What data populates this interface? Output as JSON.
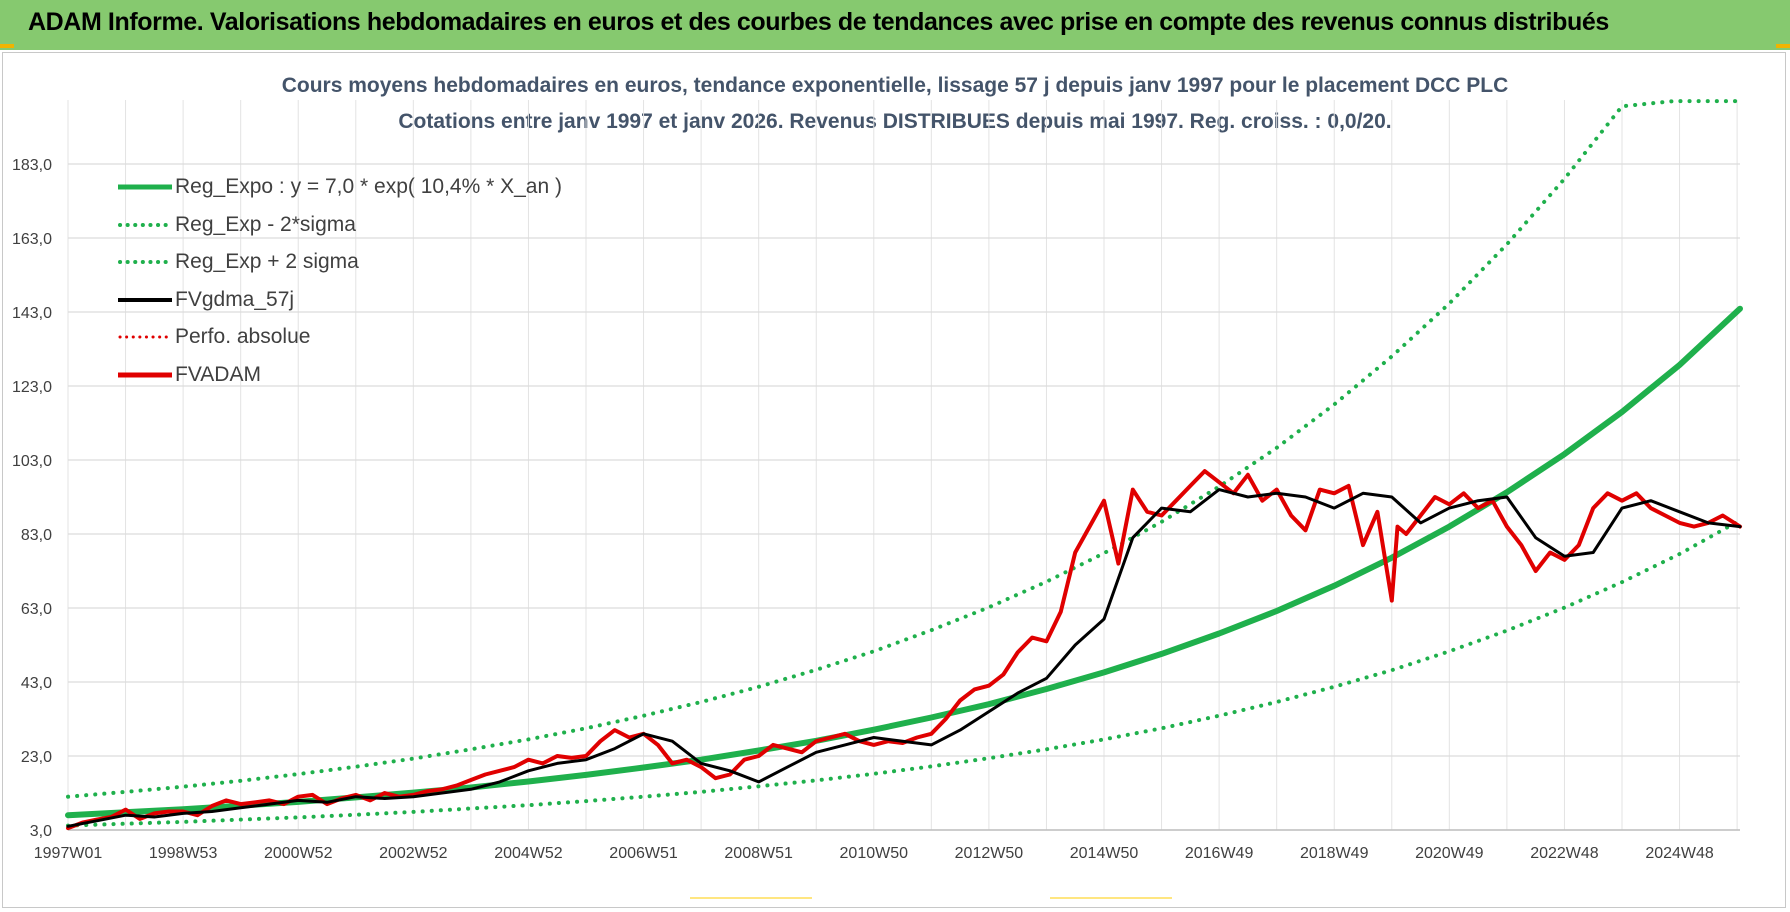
{
  "header": {
    "title": "ADAM Informe. Valorisations hebdomadaires en euros et des courbes de tendances avec prise en compte des revenus connus distribués"
  },
  "chart_data": {
    "type": "line",
    "title": "Cours moyens hebdomadaires en euros, tendance exponentielle, lissage 57 j depuis janv 1997 pour le placement DCC PLC",
    "subtitle": "Cotations entre janv 1997 et janv 2026. Revenus DISTRIBUES depuis mai 1997. Reg. croiss. : 0,0/20.",
    "xlabel": "",
    "ylabel": "",
    "x_range": [
      1997.0,
      2026.05
    ],
    "ylim": [
      3.0,
      200.0
    ],
    "grid": true,
    "legend_position": "top-left",
    "y_ticks": [
      "3,0",
      "23,0",
      "43,0",
      "63,0",
      "83,0",
      "103,0",
      "123,0",
      "143,0",
      "163,0",
      "183,0"
    ],
    "y_tick_values": [
      3,
      23,
      43,
      63,
      83,
      103,
      123,
      143,
      163,
      183
    ],
    "x_ticks": [
      "1997W01",
      "1998W53",
      "2000W52",
      "2002W52",
      "2004W52",
      "2006W51",
      "2008W51",
      "2010W50",
      "2012W50",
      "2014W50",
      "2016W49",
      "2018W49",
      "2020W49",
      "2022W48",
      "2024W48"
    ],
    "x_tick_values": [
      1997.0,
      1999.0,
      2001.0,
      2003.0,
      2005.0,
      2007.0,
      2009.0,
      2011.0,
      2013.0,
      2015.0,
      2017.0,
      2019.0,
      2021.0,
      2023.0,
      2025.0
    ],
    "series": [
      {
        "name": "Reg_Expo : y = 7,0 * exp( 10,4% *  X_an )",
        "style": "solid",
        "color": "#1fb04c",
        "x": [
          1997.0,
          1998.0,
          1999.0,
          2000.0,
          2001.0,
          2002.0,
          2003.0,
          2004.0,
          2005.0,
          2006.0,
          2007.0,
          2008.0,
          2009.0,
          2010.0,
          2011.0,
          2012.0,
          2013.0,
          2014.0,
          2015.0,
          2016.0,
          2017.0,
          2018.0,
          2019.0,
          2020.0,
          2021.0,
          2022.0,
          2023.0,
          2024.0,
          2025.0,
          2026.05
        ],
        "values": [
          7.0,
          7.8,
          8.6,
          9.6,
          10.6,
          11.8,
          13.1,
          14.5,
          16.1,
          17.9,
          19.9,
          22.0,
          24.5,
          27.1,
          30.1,
          33.4,
          37.0,
          41.1,
          45.6,
          50.6,
          56.1,
          62.2,
          69.0,
          76.6,
          85.0,
          94.3,
          104.6,
          116.0,
          128.7,
          143.9
        ]
      },
      {
        "name": "Reg_Exp - 2*sigma",
        "style": "dotted",
        "color": "#1fb04c",
        "x": [
          1997.0,
          1998.0,
          1999.0,
          2000.0,
          2001.0,
          2002.0,
          2003.0,
          2004.0,
          2005.0,
          2006.0,
          2007.0,
          2008.0,
          2009.0,
          2010.0,
          2011.0,
          2012.0,
          2013.0,
          2014.0,
          2015.0,
          2016.0,
          2017.0,
          2018.0,
          2019.0,
          2020.0,
          2021.0,
          2022.0,
          2023.0,
          2024.0,
          2025.0,
          2026.05
        ],
        "values": [
          4.2,
          4.7,
          5.2,
          5.8,
          6.4,
          7.1,
          7.9,
          8.8,
          9.7,
          10.8,
          12.0,
          13.3,
          14.8,
          16.4,
          18.2,
          20.2,
          22.4,
          24.8,
          27.5,
          30.5,
          33.9,
          37.6,
          41.7,
          46.2,
          51.3,
          56.9,
          63.1,
          70.0,
          77.6,
          86.7
        ]
      },
      {
        "name": "Reg_Exp + 2 sigma",
        "style": "dotted",
        "color": "#1fb04c",
        "x": [
          1997.0,
          1998.0,
          1999.0,
          2000.0,
          2001.0,
          2002.0,
          2003.0,
          2004.0,
          2005.0,
          2006.0,
          2007.0,
          2008.0,
          2009.0,
          2010.0,
          2011.0,
          2012.0,
          2013.0,
          2014.0,
          2015.0,
          2016.0,
          2017.0,
          2018.0,
          2019.0,
          2020.0,
          2021.0,
          2022.0,
          2023.0,
          2024.0,
          2024.9,
          2026.05
        ],
        "values": [
          12.0,
          13.3,
          14.7,
          16.3,
          18.1,
          20.1,
          22.3,
          24.8,
          27.5,
          30.5,
          33.9,
          37.6,
          41.7,
          46.3,
          51.3,
          57.0,
          63.2,
          70.1,
          77.8,
          86.3,
          95.8,
          106.3,
          118.0,
          131.0,
          145.3,
          161.3,
          179.0,
          198.6,
          200.0,
          200.0
        ]
      },
      {
        "name": "FVgdma_57j",
        "style": "solid",
        "color": "#000000",
        "x": [
          1997.0,
          1997.5,
          1998.0,
          1998.5,
          1999.0,
          1999.5,
          2000.0,
          2000.5,
          2001.0,
          2001.5,
          2002.0,
          2002.5,
          2003.0,
          2003.5,
          2004.0,
          2004.5,
          2005.0,
          2005.5,
          2006.0,
          2006.5,
          2007.0,
          2007.5,
          2008.0,
          2008.5,
          2009.0,
          2009.5,
          2010.0,
          2010.5,
          2011.0,
          2011.5,
          2012.0,
          2012.5,
          2013.0,
          2013.5,
          2014.0,
          2014.5,
          2015.0,
          2015.5,
          2016.0,
          2016.5,
          2017.0,
          2017.5,
          2018.0,
          2018.5,
          2019.0,
          2019.5,
          2020.0,
          2020.5,
          2021.0,
          2021.5,
          2022.0,
          2022.5,
          2023.0,
          2023.5,
          2024.0,
          2024.5,
          2025.0,
          2025.5,
          2026.05
        ],
        "values": [
          4.0,
          5.5,
          7.0,
          6.5,
          7.5,
          8.0,
          9.0,
          10.0,
          11.0,
          10.5,
          12.0,
          11.5,
          12.0,
          13.0,
          14.0,
          16.0,
          19.0,
          21.0,
          22.0,
          25.0,
          29.0,
          27.0,
          21.0,
          19.0,
          16.0,
          20.0,
          24.0,
          26.0,
          28.0,
          27.0,
          26.0,
          30.0,
          35.0,
          40.0,
          44.0,
          53.0,
          60.0,
          82.0,
          90.0,
          89.0,
          95.0,
          93.0,
          94.0,
          93.0,
          90.0,
          94.0,
          93.0,
          86.0,
          90.0,
          92.0,
          93.0,
          82.0,
          77.0,
          78.0,
          90.0,
          92.0,
          89.0,
          86.0,
          85.0
        ]
      },
      {
        "name": "Perfo. absolue",
        "style": "dotted",
        "color": "#e00000",
        "x": [],
        "values": []
      },
      {
        "name": "FVADAM",
        "style": "solid",
        "color": "#e00000",
        "x": [
          1997.0,
          1997.25,
          1997.5,
          1997.75,
          1998.0,
          1998.25,
          1998.5,
          1998.75,
          1999.0,
          1999.25,
          1999.5,
          1999.75,
          2000.0,
          2000.25,
          2000.5,
          2000.75,
          2001.0,
          2001.25,
          2001.5,
          2001.75,
          2002.0,
          2002.25,
          2002.5,
          2002.75,
          2003.0,
          2003.25,
          2003.5,
          2003.75,
          2004.0,
          2004.25,
          2004.5,
          2004.75,
          2005.0,
          2005.25,
          2005.5,
          2005.75,
          2006.0,
          2006.25,
          2006.5,
          2006.75,
          2007.0,
          2007.25,
          2007.5,
          2007.75,
          2008.0,
          2008.25,
          2008.5,
          2008.75,
          2009.0,
          2009.25,
          2009.5,
          2009.75,
          2010.0,
          2010.25,
          2010.5,
          2010.75,
          2011.0,
          2011.25,
          2011.5,
          2011.75,
          2012.0,
          2012.25,
          2012.5,
          2012.75,
          2013.0,
          2013.25,
          2013.5,
          2013.75,
          2014.0,
          2014.25,
          2014.5,
          2014.75,
          2015.0,
          2015.25,
          2015.5,
          2015.75,
          2016.0,
          2016.25,
          2016.5,
          2016.75,
          2017.0,
          2017.25,
          2017.5,
          2017.75,
          2018.0,
          2018.25,
          2018.5,
          2018.75,
          2019.0,
          2019.25,
          2019.5,
          2019.75,
          2020.0,
          2020.1,
          2020.25,
          2020.5,
          2020.75,
          2021.0,
          2021.25,
          2021.5,
          2021.75,
          2022.0,
          2022.25,
          2022.5,
          2022.75,
          2023.0,
          2023.25,
          2023.5,
          2023.75,
          2024.0,
          2024.25,
          2024.5,
          2024.75,
          2025.0,
          2025.25,
          2025.5,
          2025.75,
          2026.05
        ],
        "values": [
          3.5,
          5.0,
          5.8,
          6.5,
          8.5,
          6.0,
          7.5,
          8.0,
          8.0,
          7.0,
          9.5,
          11.0,
          10.0,
          10.5,
          11.0,
          10.0,
          12.0,
          12.5,
          10.0,
          11.5,
          12.5,
          11.0,
          13.0,
          12.0,
          12.5,
          13.5,
          14.0,
          15.0,
          16.5,
          18.0,
          19.0,
          20.0,
          22.0,
          21.0,
          23.0,
          22.5,
          23.0,
          27.0,
          30.0,
          28.0,
          29.0,
          26.0,
          21.0,
          22.0,
          20.0,
          17.0,
          18.0,
          22.0,
          23.0,
          26.0,
          25.0,
          24.0,
          27.0,
          28.0,
          29.0,
          27.0,
          26.0,
          27.0,
          26.5,
          28.0,
          29.0,
          33.0,
          38.0,
          41.0,
          42.0,
          45.0,
          51.0,
          55.0,
          54.0,
          62.0,
          78.0,
          85.0,
          92.0,
          75.0,
          95.0,
          89.0,
          88.0,
          92.0,
          96.0,
          100.0,
          97.0,
          94.0,
          99.0,
          92.0,
          95.0,
          88.0,
          84.0,
          95.0,
          94.0,
          96.0,
          80.0,
          89.0,
          65.0,
          85.0,
          83.0,
          88.0,
          93.0,
          91.0,
          94.0,
          90.0,
          92.0,
          85.0,
          80.0,
          73.0,
          78.0,
          76.0,
          80.0,
          90.0,
          94.0,
          92.0,
          94.0,
          90.0,
          88.0,
          86.0,
          85.0,
          86.0,
          88.0,
          85.0
        ]
      }
    ]
  }
}
